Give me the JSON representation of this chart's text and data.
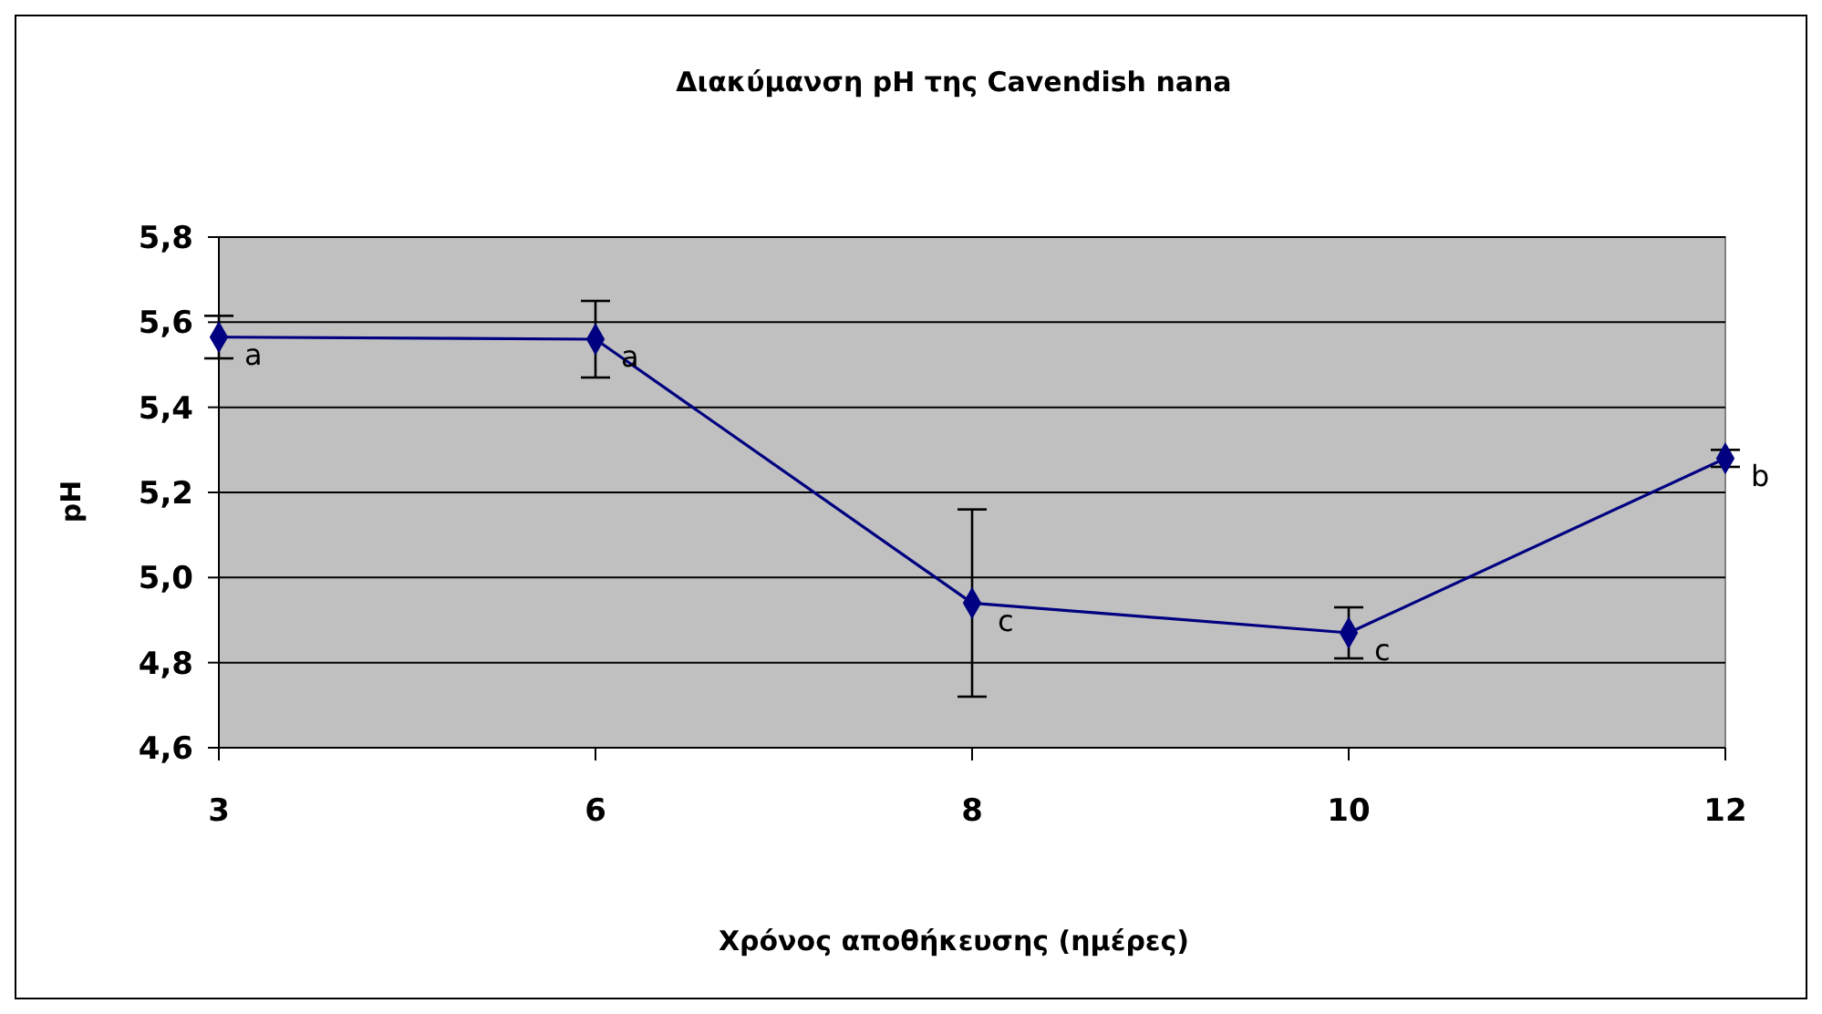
{
  "chart_data": {
    "type": "line",
    "title": "Διακύμανση pH της Cavendish nana",
    "xlabel": "Χρόνος αποθήκευσης (ημέρες)",
    "ylabel": "pH",
    "categories": [
      "3",
      "6",
      "8",
      "10",
      "12"
    ],
    "series": [
      {
        "color": "#000080",
        "values": [
          5.565,
          5.56,
          4.94,
          4.87,
          5.28
        ],
        "errors": [
          0.05,
          0.09,
          0.22,
          0.06,
          0.02
        ]
      }
    ],
    "ylim": [
      4.6,
      5.8
    ],
    "yticks": [
      {
        "value": 4.6,
        "label": "4,6"
      },
      {
        "value": 4.8,
        "label": "4,8"
      },
      {
        "value": 5.0,
        "label": "5,0"
      },
      {
        "value": 5.2,
        "label": "5,2"
      },
      {
        "value": 5.4,
        "label": "5,4"
      },
      {
        "value": 5.6,
        "label": "5,6"
      },
      {
        "value": 5.8,
        "label": "5,8"
      }
    ],
    "grid": "y",
    "marker": "diamond",
    "line_style": "solid",
    "annotations": [
      {
        "text": "a",
        "x": "3",
        "y": 5.565
      },
      {
        "text": "a",
        "x": "6",
        "y": 5.56
      },
      {
        "text": "c",
        "x": "8",
        "y": 4.94
      },
      {
        "text": "c",
        "x": "10",
        "y": 4.87
      },
      {
        "text": "b",
        "x": "12",
        "y": 5.28
      }
    ]
  }
}
